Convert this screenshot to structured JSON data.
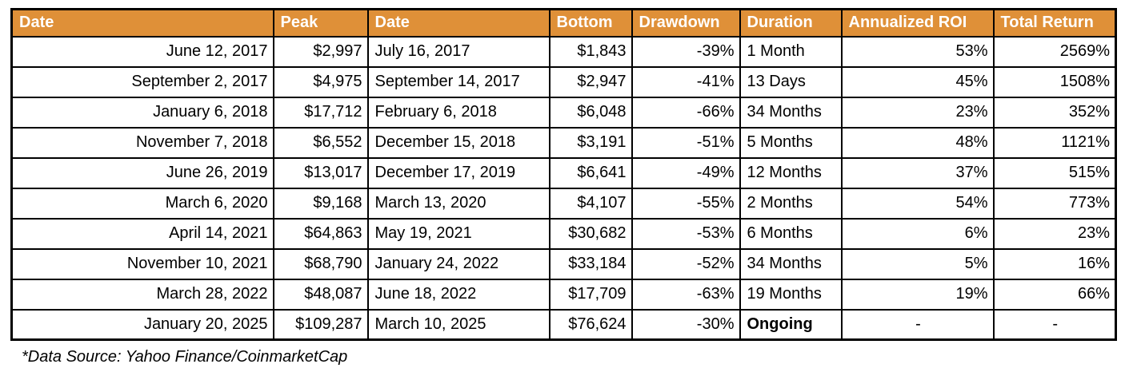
{
  "chart_data": {
    "type": "table",
    "columns": [
      "Date",
      "Peak",
      "Date",
      "Bottom",
      "Drawdown",
      "Duration",
      "Annualized ROI",
      "Total Return"
    ],
    "rows": [
      [
        "June 12, 2017",
        "$2,997",
        "July 16, 2017",
        "$1,843",
        "-39%",
        "1 Month",
        "53%",
        "2569%"
      ],
      [
        "September 2, 2017",
        "$4,975",
        "September 14, 2017",
        "$2,947",
        "-41%",
        "13 Days",
        "45%",
        "1508%"
      ],
      [
        "January 6, 2018",
        "$17,712",
        "February 6, 2018",
        "$6,048",
        "-66%",
        "34 Months",
        "23%",
        "352%"
      ],
      [
        "November 7, 2018",
        "$6,552",
        "December 15, 2018",
        "$3,191",
        "-51%",
        "5 Months",
        "48%",
        "1121%"
      ],
      [
        "June 26, 2019",
        "$13,017",
        "December 17, 2019",
        "$6,641",
        "-49%",
        "12 Months",
        "37%",
        "515%"
      ],
      [
        "March 6, 2020",
        "$9,168",
        "March 13, 2020",
        "$4,107",
        "-55%",
        "2 Months",
        "54%",
        "773%"
      ],
      [
        "April 14, 2021",
        "$64,863",
        "May 19, 2021",
        "$30,682",
        "-53%",
        "6 Months",
        "6%",
        "23%"
      ],
      [
        "November 10, 2021",
        "$68,790",
        "January 24, 2022",
        "$33,184",
        "-52%",
        "34 Months",
        "5%",
        "16%"
      ],
      [
        "March 28, 2022",
        "$48,087",
        "June 18, 2022",
        "$17,709",
        "-63%",
        "19 Months",
        "19%",
        "66%"
      ],
      [
        "January 20, 2025",
        "$109,287",
        "March 10, 2025",
        "$76,624",
        "-30%",
        "Ongoing",
        "-",
        "-"
      ]
    ],
    "layout": {
      "header_position": "top",
      "grid": true
    }
  },
  "footer": {
    "note": "*Data Source: Yahoo Finance/CoinmarketCap"
  },
  "colors": {
    "header_bg": "#DF9038",
    "header_text": "#FFFFFF",
    "border": "#000000",
    "cell_text": "#000000"
  }
}
